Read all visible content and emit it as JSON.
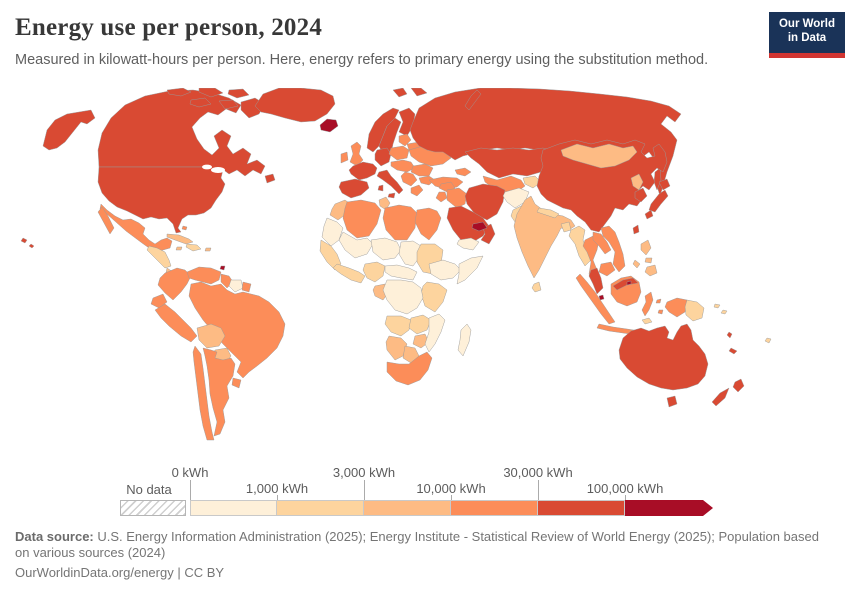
{
  "header": {
    "title": "Energy use per person, 2024",
    "subtitle": "Measured in kilowatt-hours per person. Here, energy refers to primary energy using the substitution method."
  },
  "logo": {
    "line1": "Our World",
    "line2": "in Data",
    "bg": "#1a3358",
    "accent": "#d13532"
  },
  "legend": {
    "no_data_label": "No data",
    "colors": [
      "#fef0d9",
      "#fdd49e",
      "#fdbb84",
      "#fc8d59",
      "#d94a33",
      "#a80d26"
    ],
    "stops": [
      {
        "label": "0 kWh",
        "row": "top"
      },
      {
        "label": "1,000 kWh",
        "row": "bottom"
      },
      {
        "label": "3,000 kWh",
        "row": "top"
      },
      {
        "label": "10,000 kWh",
        "row": "bottom"
      },
      {
        "label": "30,000 kWh",
        "row": "top"
      },
      {
        "label": "100,000 kWh",
        "row": "bottom"
      }
    ]
  },
  "footer": {
    "datasource_label": "Data source:",
    "datasource_text": " U.S. Energy Information Administration (2025); Energy Institute - Statistical Review of World Energy (2025); Population based on various sources (2024)",
    "license_line": "OurWorldinData.org/energy | CC BY"
  },
  "map": {
    "border_color": "#9a9a9a",
    "fills": {
      "usa": 5,
      "canada": 5,
      "greenland": 5,
      "iceland": 6,
      "mexico": 4,
      "central-america-north": 2,
      "central-america-south": 3,
      "cuba": 3,
      "hispaniola": 2,
      "jamaica": 3,
      "puerto-rico": 3,
      "bahamas": 4,
      "trinidad": 6,
      "colombia": 4,
      "venezuela": 4,
      "guyana": 4,
      "suriname": 1,
      "french-guiana": 4,
      "ecuador": 4,
      "peru": 4,
      "brazil": 4,
      "bolivia": 3,
      "paraguay": 3,
      "chile": 4,
      "argentina": 4,
      "uruguay": 4,
      "uk": 4,
      "ireland": 4,
      "norway": 5,
      "sweden": 5,
      "finland": 5,
      "denmark": 5,
      "france": 5,
      "iberia": 5,
      "germany": 5,
      "italy": 5,
      "poland": 4,
      "baltics": 4,
      "belarus": 4,
      "ukraine": 4,
      "central-europe": 4,
      "romania": 4,
      "bulgaria": 4,
      "balkans": 4,
      "greece": 4,
      "turkey": 4,
      "caucasus": 4,
      "svalbard": 5,
      "russia": 5,
      "kazakhstan": 5,
      "uzbekistan-turkmenistan": 4,
      "kyrgyzstan-tajikistan": 2,
      "iran": 5,
      "iraq": 4,
      "syria": 4,
      "jordan-israel": 4,
      "saudi-arabia": 5,
      "yemen": 1,
      "oman": 5,
      "uae-qatar": 6,
      "afghanistan": 1,
      "pakistan": 2,
      "india": 3,
      "nepal": 2,
      "bangladesh": 2,
      "sri-lanka": 2,
      "china": 5,
      "mongolia": 3,
      "north-korea": 3,
      "south-korea": 5,
      "japan": 5,
      "taiwan": 5,
      "myanmar": 2,
      "thailand": 4,
      "laos": 4,
      "vietnam": 4,
      "cambodia": 4,
      "malaysia": 5,
      "singapore": 6,
      "indonesia": 4,
      "brunei": 6,
      "png": 2,
      "timor": 2,
      "philippines": 3,
      "australia": 5,
      "new-zealand": 5,
      "new-caledonia": 5,
      "vanuatu": 5,
      "fiji": 2,
      "solomon": 2,
      "morocco": 3,
      "western-sahara": 1,
      "senegal-guinea": 2,
      "algeria": 4,
      "tunisia": 3,
      "libya": 4,
      "egypt": 4,
      "mali": 1,
      "niger": 1,
      "chad": 1,
      "sudan": 2,
      "west-africa-coast": 2,
      "nigeria": 2,
      "cameroon-car": 1,
      "gabon": 3,
      "ethiopia": 1,
      "somalia": 1,
      "east-africa": 2,
      "drc": 1,
      "angola": 2,
      "zambia": 2,
      "zimbabwe": 3,
      "mozambique": 1,
      "namibia": 3,
      "botswana": 3,
      "south-africa": 4,
      "madagascar": 1,
      "hawaii": 5
    }
  },
  "chart_data": {
    "type": "heatmap",
    "subtype": "world-choropleth",
    "title": "Energy use per person, 2024",
    "unit": "kWh per person",
    "scale": "binned (log-like steps)",
    "legend_position": "bottom",
    "bin_edges_kwh": [
      0,
      1000,
      3000,
      10000,
      30000,
      100000
    ],
    "bins": [
      {
        "range": "0–1,000 kWh",
        "color": "#fef0d9",
        "regions": [
          "Afghanistan",
          "Yemen",
          "Mali",
          "Niger",
          "Chad",
          "Mauritania",
          "Western Sahara",
          "Central African Republic",
          "Cameroon region",
          "DR Congo",
          "Ethiopia",
          "Somalia",
          "Mozambique",
          "Madagascar",
          "Suriname"
        ]
      },
      {
        "range": "1,000–3,000 kWh",
        "color": "#fdd49e",
        "regions": [
          "Pakistan",
          "Nepal",
          "Bangladesh",
          "Sri Lanka",
          "Myanmar",
          "Kyrgyzstan/Tajikistan",
          "Guatemala/Honduras/Nicaragua",
          "Haiti/Dominican Republic",
          "Senegal/Guinea",
          "Ghana/Côte d'Ivoire",
          "Nigeria",
          "Sudan",
          "Kenya/Tanzania/Uganda",
          "Angola",
          "Zambia",
          "Papua New Guinea",
          "Timor",
          "Fiji",
          "Solomon Islands"
        ]
      },
      {
        "range": "3,000–10,000 kWh",
        "color": "#fdbb84",
        "regions": [
          "India",
          "Mongolia",
          "North Korea",
          "Philippines",
          "Bolivia",
          "Paraguay",
          "Cuba",
          "Jamaica",
          "Puerto Rico",
          "Costa Rica/Panama",
          "Morocco",
          "Tunisia",
          "Gabon",
          "Zimbabwe",
          "Namibia",
          "Botswana"
        ]
      },
      {
        "range": "10,000–30,000 kWh",
        "color": "#fc8d59",
        "regions": [
          "Mexico",
          "Colombia",
          "Venezuela",
          "Brazil",
          "Peru",
          "Ecuador",
          "Chile",
          "Argentina",
          "Uruguay",
          "Guyana",
          "United Kingdom",
          "Ireland",
          "Poland",
          "Ukraine",
          "Belarus",
          "Romania",
          "Bulgaria",
          "Balkans",
          "Greece",
          "Turkey",
          "Caucasus",
          "Iraq",
          "Syria",
          "Uzbekistan/Turkmenistan",
          "Algeria",
          "Libya",
          "Egypt",
          "South Africa",
          "Thailand",
          "Vietnam",
          "Laos",
          "Cambodia",
          "Indonesia"
        ]
      },
      {
        "range": "30,000–100,000 kWh",
        "color": "#d94a33",
        "regions": [
          "United States",
          "Canada",
          "Greenland",
          "Russia",
          "Kazakhstan",
          "China",
          "Japan",
          "South Korea",
          "Taiwan",
          "Norway",
          "Sweden",
          "Finland",
          "Denmark",
          "Germany",
          "France",
          "Spain/Portugal",
          "Italy",
          "Saudi Arabia",
          "Oman",
          "Iran",
          "Malaysia",
          "Australia",
          "New Zealand",
          "New Caledonia"
        ]
      },
      {
        "range": "100,000+ kWh",
        "color": "#a80d26",
        "regions": [
          "Iceland",
          "United Arab Emirates/Qatar",
          "Trinidad and Tobago",
          "Brunei",
          "Singapore"
        ]
      }
    ],
    "no_data": {
      "label": "No data",
      "pattern": "diagonal-hatch"
    }
  }
}
